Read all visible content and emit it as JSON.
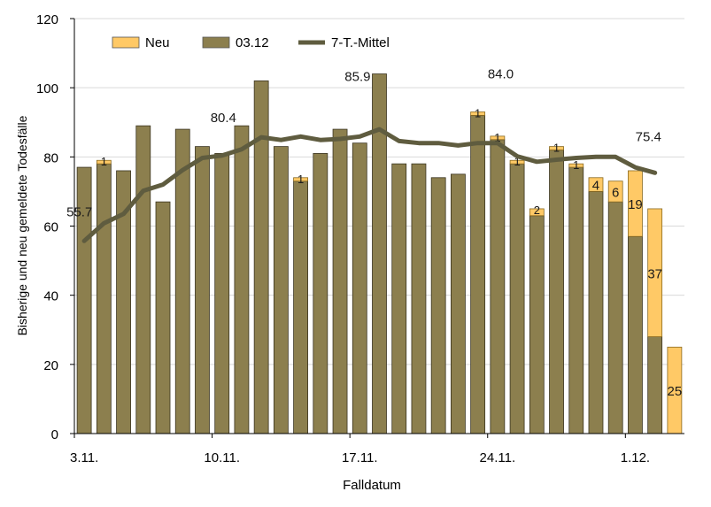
{
  "chart_data": {
    "type": "bar",
    "stacked": true,
    "title": "",
    "xlabel": "Falldatum",
    "ylabel": "Bisherige und neu gemeldete Todesfälle",
    "ylim": [
      0,
      120
    ],
    "yticks": [
      0,
      20,
      40,
      60,
      80,
      100,
      120
    ],
    "xtick_labels": [
      {
        "index": 0,
        "label": "3.11."
      },
      {
        "index": 7,
        "label": "10.11."
      },
      {
        "index": 14,
        "label": "17.11."
      },
      {
        "index": 21,
        "label": "24.11."
      },
      {
        "index": 28,
        "label": "1.12."
      }
    ],
    "categories": [
      "03.11.",
      "04.11.",
      "05.11.",
      "06.11.",
      "07.11.",
      "08.11.",
      "09.11.",
      "10.11.",
      "11.11.",
      "12.11.",
      "13.11.",
      "14.11.",
      "15.11.",
      "16.11.",
      "17.11.",
      "18.11.",
      "19.11.",
      "20.11.",
      "21.11.",
      "22.11.",
      "23.11.",
      "24.11.",
      "25.11.",
      "26.11.",
      "27.11.",
      "28.11.",
      "29.11.",
      "30.11.",
      "01.12.",
      "02.12.",
      "03.12."
    ],
    "series": [
      {
        "name": "03.12",
        "color": "#8c7f4e",
        "values": [
          77,
          78,
          76,
          89,
          67,
          88,
          83,
          81,
          89,
          102,
          83,
          73,
          81,
          88,
          84,
          104,
          78,
          78,
          74,
          75,
          92,
          85,
          78,
          63,
          82,
          77,
          70,
          67,
          57,
          28,
          0
        ]
      },
      {
        "name": "Neu",
        "color": "#ffc966",
        "values": [
          0,
          1,
          0,
          0,
          0,
          0,
          0,
          0,
          0,
          0,
          0,
          1,
          0,
          0,
          0,
          0,
          0,
          0,
          0,
          0,
          1,
          1,
          1,
          2,
          1,
          1,
          4,
          6,
          19,
          37,
          25
        ]
      }
    ],
    "bar_labels": [
      "",
      "1",
      "",
      "",
      "",
      "",
      "",
      "",
      "",
      "",
      "",
      "1",
      "",
      "",
      "",
      "",
      "",
      "",
      "",
      "",
      "1",
      "1",
      "1",
      "2",
      "1",
      "1",
      "4",
      "6",
      "19",
      "37",
      "25"
    ],
    "line": {
      "name": "7-T.-Mittel",
      "color": "#5f5c3f",
      "values": [
        55.7,
        60.8,
        63.5,
        70.2,
        72.0,
        76.2,
        79.7,
        80.4,
        82.2,
        85.7,
        84.9,
        85.9,
        84.9,
        85.2,
        85.9,
        88.0,
        84.6,
        84.0,
        84.0,
        83.3,
        84.0,
        84.0,
        80.2,
        78.6,
        79.2,
        79.7,
        80.0,
        80.0,
        77.0,
        75.4
      ],
      "annotations": [
        {
          "index": 0,
          "label": "55.7"
        },
        {
          "index": 7,
          "label": "80.4"
        },
        {
          "index": 14,
          "label": "85.9"
        },
        {
          "index": 21,
          "label": "84.0"
        },
        {
          "index": 29,
          "label": "75.4"
        }
      ]
    },
    "legend": {
      "position": "top-left",
      "entries": [
        {
          "label": "Neu",
          "color": "#ffc966",
          "kind": "box"
        },
        {
          "label": "03.12",
          "color": "#8c7f4e",
          "kind": "box"
        },
        {
          "label": "7-T.-Mittel",
          "color": "#5f5c3f",
          "kind": "line"
        }
      ]
    },
    "grid": true
  }
}
